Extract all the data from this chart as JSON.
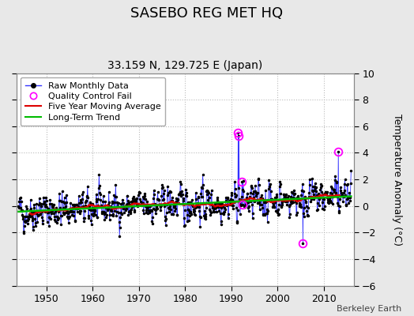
{
  "title": "SASEBO REG MET HQ",
  "subtitle": "33.159 N, 129.725 E (Japan)",
  "ylabel": "Temperature Anomaly (°C)",
  "attribution": "Berkeley Earth",
  "xlim": [
    1943.5,
    2016.5
  ],
  "ylim": [
    -6,
    10
  ],
  "yticks": [
    -6,
    -4,
    -2,
    0,
    2,
    4,
    6,
    8,
    10
  ],
  "xticks": [
    1950,
    1960,
    1970,
    1980,
    1990,
    2000,
    2010
  ],
  "start_year": 1944,
  "end_year": 2015,
  "seed": 42,
  "bg_color": "#e8e8e8",
  "plot_bg_color": "#ffffff",
  "raw_line_color": "#3333ff",
  "raw_marker_color": "#000000",
  "qc_fail_color": "#ff00ff",
  "moving_avg_color": "#dd0000",
  "trend_color": "#00bb00",
  "trend_slope": 0.016,
  "trend_intercept_at1980": 0.15,
  "moving_avg_window": 60,
  "noise_std": 1.15,
  "title_fontsize": 13,
  "subtitle_fontsize": 10,
  "tick_fontsize": 9,
  "ylabel_fontsize": 9,
  "legend_fontsize": 8,
  "attribution_fontsize": 8,
  "qc_fail_years": [
    1991.5,
    1991.7,
    1992.3,
    1992.4,
    2005.5,
    2013.2
  ],
  "qc_fail_values": [
    5.5,
    5.3,
    1.8,
    0.1,
    -2.8,
    4.1
  ]
}
